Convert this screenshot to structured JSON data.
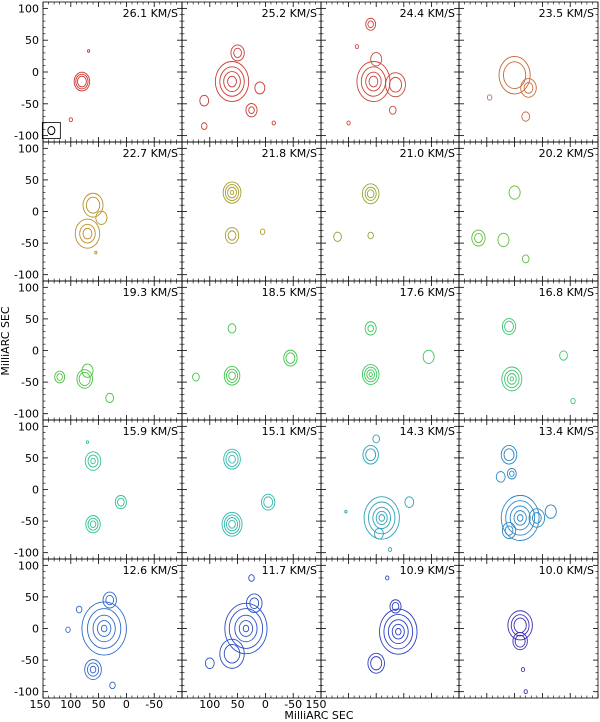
{
  "chart_data": {
    "type": "contour-channel-map",
    "title": "",
    "xlabel": "MilliARC SEC",
    "ylabel": "MilliARC SEC",
    "xlim": [
      150,
      -100
    ],
    "ylim": [
      -110,
      110
    ],
    "x_ticks": [
      150,
      100,
      50,
      0,
      -50
    ],
    "y_ticks": [
      100,
      50,
      0,
      -50,
      -100
    ],
    "x_tick_labels": [
      "150",
      "100",
      "50",
      "0",
      "-50"
    ],
    "y_tick_labels": [
      "100",
      "50",
      "0",
      "-50",
      "-100"
    ],
    "last_x_tick_label": "150",
    "velocity_unit": "KM/S",
    "beam": {
      "panel": 0,
      "x": 135,
      "y": -92,
      "r": 7
    },
    "panels": [
      {
        "label": "26.1 KM/S",
        "color": "#cc3333",
        "features": [
          {
            "x": 80,
            "y": -15,
            "rs": [
              14,
              11,
              8
            ]
          },
          {
            "x": 68,
            "y": 33,
            "rs": [
              2
            ]
          },
          {
            "x": 100,
            "y": -75,
            "rs": [
              3
            ]
          }
        ]
      },
      {
        "label": "25.2 KM/S",
        "color": "#cc3b33",
        "features": [
          {
            "x": 60,
            "y": -15,
            "rs": [
              30,
              22,
              15,
              8
            ]
          },
          {
            "x": 50,
            "y": 30,
            "rs": [
              12,
              7
            ]
          },
          {
            "x": 10,
            "y": -25,
            "rs": [
              9
            ]
          },
          {
            "x": 25,
            "y": -60,
            "rs": [
              10,
              5
            ]
          },
          {
            "x": 110,
            "y": -45,
            "rs": [
              8
            ]
          },
          {
            "x": 110,
            "y": -85,
            "rs": [
              5
            ]
          },
          {
            "x": -15,
            "y": -80,
            "rs": [
              3
            ]
          }
        ]
      },
      {
        "label": "24.4 KM/S",
        "color": "#c9473a",
        "features": [
          {
            "x": 60,
            "y": 75,
            "rs": [
              9,
              5
            ]
          },
          {
            "x": 55,
            "y": -15,
            "rs": [
              30,
              22,
              14,
              8
            ]
          },
          {
            "x": 15,
            "y": -20,
            "rs": [
              18,
              11
            ]
          },
          {
            "x": 50,
            "y": 20,
            "rs": [
              10
            ]
          },
          {
            "x": 85,
            "y": 40,
            "rs": [
              3
            ]
          },
          {
            "x": 20,
            "y": -60,
            "rs": [
              6
            ]
          },
          {
            "x": 100,
            "y": -80,
            "rs": [
              3
            ]
          }
        ]
      },
      {
        "label": "23.5 KM/S",
        "color": "#c86a34",
        "features": [
          {
            "x": 50,
            "y": -5,
            "rs": [
              28,
              20
            ]
          },
          {
            "x": 25,
            "y": -25,
            "rs": [
              14,
              8
            ]
          },
          {
            "x": 30,
            "y": -70,
            "rs": [
              7
            ]
          },
          {
            "x": 95,
            "y": -40,
            "rs": [
              4
            ]
          }
        ]
      },
      {
        "label": "22.7 KM/S",
        "color": "#b8902b",
        "features": [
          {
            "x": 60,
            "y": 10,
            "rs": [
              18,
              12
            ]
          },
          {
            "x": 45,
            "y": -10,
            "rs": [
              10
            ]
          },
          {
            "x": 70,
            "y": -35,
            "rs": [
              22,
              14,
              8
            ]
          },
          {
            "x": 55,
            "y": -65,
            "rs": [
              2
            ]
          }
        ]
      },
      {
        "label": "21.8 KM/S",
        "color": "#a79a28",
        "features": [
          {
            "x": 60,
            "y": 30,
            "rs": [
              16,
              12,
              8,
              3
            ]
          },
          {
            "x": 60,
            "y": -38,
            "rs": [
              12,
              7
            ]
          },
          {
            "x": 5,
            "y": -32,
            "rs": [
              4
            ]
          }
        ]
      },
      {
        "label": "21.0 KM/S",
        "color": "#95a231",
        "features": [
          {
            "x": 60,
            "y": 28,
            "rs": [
              15,
              10,
              6
            ]
          },
          {
            "x": 120,
            "y": -40,
            "rs": [
              7
            ]
          },
          {
            "x": 60,
            "y": -38,
            "rs": [
              5
            ]
          }
        ]
      },
      {
        "label": "20.2 KM/S",
        "color": "#5fbd3c",
        "features": [
          {
            "x": 50,
            "y": 30,
            "rs": [
              10
            ]
          },
          {
            "x": 115,
            "y": -42,
            "rs": [
              12,
              7
            ]
          },
          {
            "x": 70,
            "y": -45,
            "rs": [
              10
            ]
          },
          {
            "x": 30,
            "y": -75,
            "rs": [
              6
            ]
          }
        ]
      },
      {
        "label": "19.3 KM/S",
        "color": "#4cc13f",
        "features": [
          {
            "x": 120,
            "y": -42,
            "rs": [
              9,
              5
            ]
          },
          {
            "x": 75,
            "y": -45,
            "rs": [
              14,
              10
            ]
          },
          {
            "x": 70,
            "y": -32,
            "rs": [
              10
            ]
          },
          {
            "x": 30,
            "y": -75,
            "rs": [
              7
            ]
          }
        ]
      },
      {
        "label": "18.5 KM/S",
        "color": "#43c44b",
        "features": [
          {
            "x": 60,
            "y": 35,
            "rs": [
              7
            ]
          },
          {
            "x": 60,
            "y": -40,
            "rs": [
              14,
              10,
              6
            ]
          },
          {
            "x": 125,
            "y": -42,
            "rs": [
              6
            ]
          },
          {
            "x": -45,
            "y": -12,
            "rs": [
              12,
              8
            ]
          }
        ]
      },
      {
        "label": "17.6 KM/S",
        "color": "#3ec45c",
        "features": [
          {
            "x": 60,
            "y": 35,
            "rs": [
              10,
              5
            ]
          },
          {
            "x": 60,
            "y": -38,
            "rs": [
              15,
              11,
              7,
              3
            ]
          },
          {
            "x": -45,
            "y": -10,
            "rs": [
              10
            ]
          }
        ]
      },
      {
        "label": "16.8 KM/S",
        "color": "#3ec270",
        "features": [
          {
            "x": 60,
            "y": 38,
            "rs": [
              12,
              8
            ]
          },
          {
            "x": 55,
            "y": -45,
            "rs": [
              18,
              13,
              8,
              3
            ]
          },
          {
            "x": -38,
            "y": -8,
            "rs": [
              7
            ]
          },
          {
            "x": -55,
            "y": -80,
            "rs": [
              4
            ]
          }
        ]
      },
      {
        "label": "15.9 KM/S",
        "color": "#32bf95",
        "features": [
          {
            "x": 60,
            "y": 45,
            "rs": [
              14,
              9,
              4
            ]
          },
          {
            "x": 60,
            "y": -55,
            "rs": [
              13,
              9,
              5
            ]
          },
          {
            "x": 10,
            "y": -20,
            "rs": [
              10,
              6
            ]
          },
          {
            "x": 70,
            "y": 75,
            "rs": [
              2
            ]
          }
        ]
      },
      {
        "label": "15.1 KM/S",
        "color": "#2eb8ab",
        "features": [
          {
            "x": 60,
            "y": 48,
            "rs": [
              15,
              11,
              6
            ]
          },
          {
            "x": 60,
            "y": -55,
            "rs": [
              18,
              14,
              10,
              6
            ]
          },
          {
            "x": -5,
            "y": -20,
            "rs": [
              12,
              8
            ]
          }
        ]
      },
      {
        "label": "14.3 KM/S",
        "color": "#2ea2b6",
        "features": [
          {
            "x": 60,
            "y": 55,
            "rs": [
              14,
              9
            ]
          },
          {
            "x": 50,
            "y": 80,
            "rs": [
              6
            ]
          },
          {
            "x": 40,
            "y": -45,
            "rs": [
              32,
              24,
              16,
              10,
              5
            ]
          },
          {
            "x": 45,
            "y": -70,
            "rs": [
              8
            ]
          },
          {
            "x": -10,
            "y": -20,
            "rs": [
              8
            ]
          },
          {
            "x": 25,
            "y": -95,
            "rs": [
              3
            ]
          },
          {
            "x": 105,
            "y": -35,
            "rs": [
              2
            ]
          }
        ]
      },
      {
        "label": "13.4 KM/S",
        "color": "#2b86c4",
        "features": [
          {
            "x": 60,
            "y": 55,
            "rs": [
              14,
              9
            ]
          },
          {
            "x": 55,
            "y": 25,
            "rs": [
              8,
              4
            ]
          },
          {
            "x": 75,
            "y": 20,
            "rs": [
              8
            ]
          },
          {
            "x": 40,
            "y": -45,
            "rs": [
              34,
              26,
              18,
              11,
              5
            ]
          },
          {
            "x": 60,
            "y": -65,
            "rs": [
              12,
              7
            ]
          },
          {
            "x": 10,
            "y": -45,
            "rs": [
              14,
              8
            ]
          },
          {
            "x": -15,
            "y": -35,
            "rs": [
              10
            ]
          }
        ]
      },
      {
        "label": "12.6 KM/S",
        "color": "#2f68c8",
        "features": [
          {
            "x": 40,
            "y": 0,
            "rs": [
              40,
              30,
              20,
              12,
              5
            ]
          },
          {
            "x": 30,
            "y": 45,
            "rs": [
              12,
              7
            ]
          },
          {
            "x": 60,
            "y": -65,
            "rs": [
              15,
              10,
              5
            ]
          },
          {
            "x": 85,
            "y": 30,
            "rs": [
              5
            ]
          },
          {
            "x": 105,
            "y": -2,
            "rs": [
              4
            ]
          },
          {
            "x": 25,
            "y": -90,
            "rs": [
              5
            ]
          }
        ]
      },
      {
        "label": "11.7 KM/S",
        "color": "#2c4fc4",
        "features": [
          {
            "x": 35,
            "y": 0,
            "rs": [
              38,
              30,
              20,
              12,
              5
            ]
          },
          {
            "x": 20,
            "y": 40,
            "rs": [
              14,
              8
            ]
          },
          {
            "x": 60,
            "y": -40,
            "rs": [
              22,
              14
            ]
          },
          {
            "x": 25,
            "y": 80,
            "rs": [
              5
            ]
          },
          {
            "x": 100,
            "y": -55,
            "rs": [
              8
            ]
          }
        ]
      },
      {
        "label": "10.9 KM/S",
        "color": "#2e3ec0",
        "features": [
          {
            "x": 10,
            "y": -5,
            "rs": [
              34,
              26,
              18,
              11,
              5
            ]
          },
          {
            "x": 15,
            "y": 35,
            "rs": [
              10,
              6
            ]
          },
          {
            "x": 50,
            "y": -55,
            "rs": [
              15,
              10
            ]
          },
          {
            "x": 30,
            "y": 80,
            "rs": [
              3
            ]
          }
        ]
      },
      {
        "label": "10.0 KM/S",
        "color": "#3d2fb5",
        "features": [
          {
            "x": 40,
            "y": 5,
            "rs": [
              22,
              16,
              11
            ]
          },
          {
            "x": 40,
            "y": -20,
            "rs": [
              13,
              9
            ]
          },
          {
            "x": 35,
            "y": -65,
            "rs": [
              3
            ]
          },
          {
            "x": 30,
            "y": -100,
            "rs": [
              3
            ]
          }
        ]
      }
    ]
  }
}
